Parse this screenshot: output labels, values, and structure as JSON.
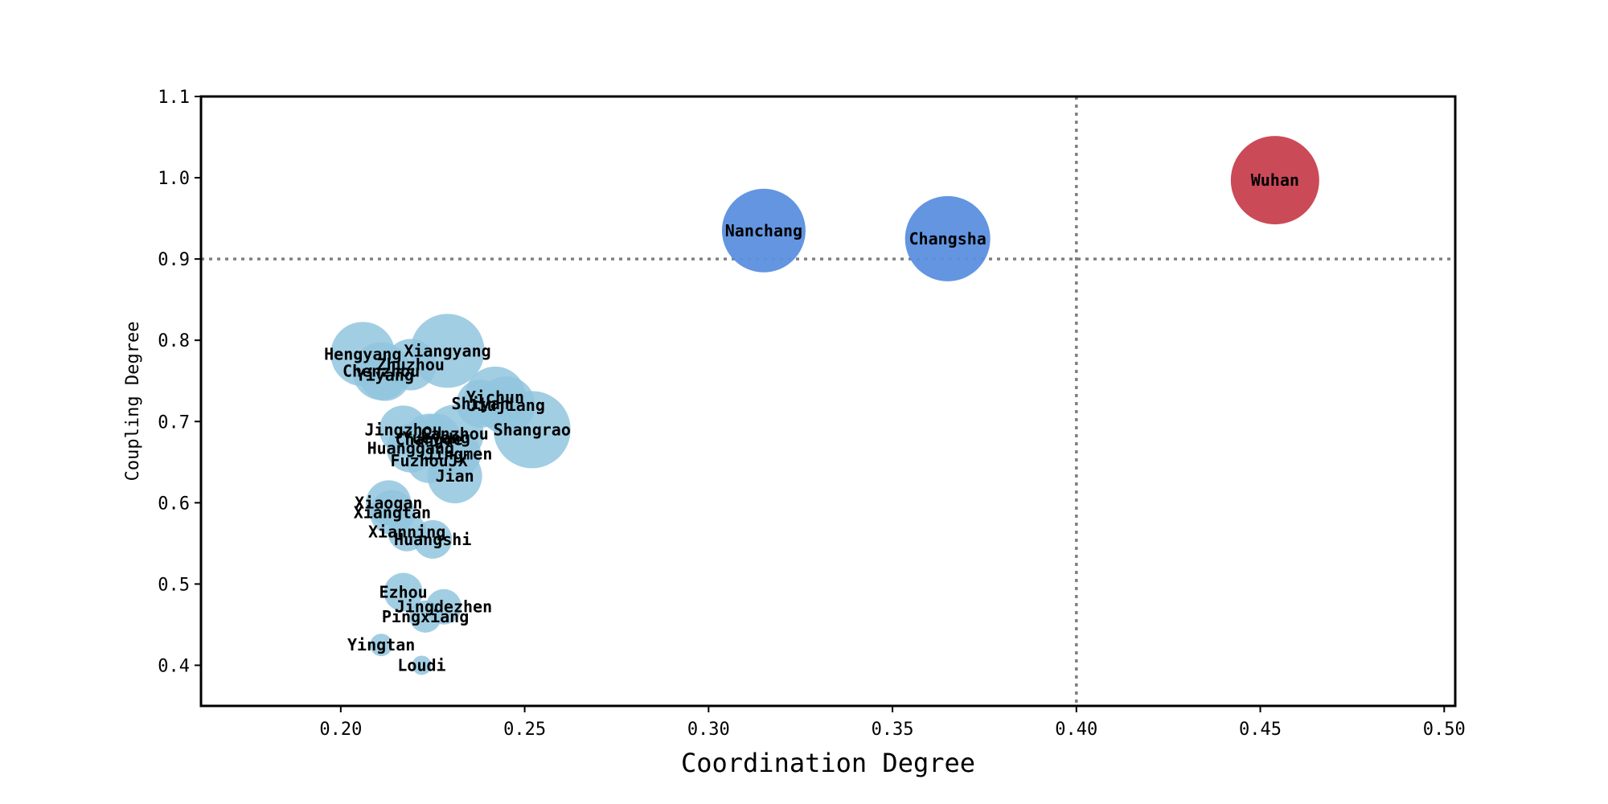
{
  "chart_data": {
    "type": "scatter",
    "title": "",
    "xlabel": "Coordination Degree",
    "ylabel": "Coupling Degree",
    "xlim": [
      0.162,
      0.503
    ],
    "ylim": [
      0.35,
      1.1
    ],
    "xticks": [
      0.2,
      0.25,
      0.3,
      0.35,
      0.4,
      0.45,
      0.5
    ],
    "yticks": [
      0.4,
      0.5,
      0.6,
      0.7,
      0.8,
      0.9,
      1.0,
      1.1
    ],
    "xtick_labels": [
      "0.20",
      "0.25",
      "0.30",
      "0.35",
      "0.40",
      "0.45",
      "0.50"
    ],
    "ytick_labels": [
      "0.4",
      "0.5",
      "0.6",
      "0.7",
      "0.8",
      "0.9",
      "1.0",
      "1.1"
    ],
    "grid": false,
    "reference_lines": {
      "x": 0.4,
      "y": 0.9,
      "style": "dotted",
      "color": "#808080"
    },
    "colors": {
      "low": "#92c5de",
      "mid": "#5b8fdf",
      "high": "#c8404f"
    },
    "points": [
      {
        "name": "Wuhan",
        "x": 0.454,
        "y": 0.997,
        "size": 55,
        "group": "high"
      },
      {
        "name": "Nanchang",
        "x": 0.315,
        "y": 0.935,
        "size": 52,
        "group": "mid"
      },
      {
        "name": "Changsha",
        "x": 0.365,
        "y": 0.925,
        "size": 53,
        "group": "mid"
      },
      {
        "name": "Xiangyang",
        "x": 0.229,
        "y": 0.787,
        "size": 46,
        "group": "low"
      },
      {
        "name": "Hengyang",
        "x": 0.206,
        "y": 0.783,
        "size": 40,
        "group": "low"
      },
      {
        "name": "Zhuzhou",
        "x": 0.219,
        "y": 0.77,
        "size": 32,
        "group": "low"
      },
      {
        "name": "Chenzhou",
        "x": 0.211,
        "y": 0.762,
        "size": 36,
        "group": "low"
      },
      {
        "name": "Yiyang",
        "x": 0.212,
        "y": 0.757,
        "size": 32,
        "group": "low"
      },
      {
        "name": "Yichun",
        "x": 0.242,
        "y": 0.73,
        "size": 38,
        "group": "low"
      },
      {
        "name": "Shiyan",
        "x": 0.238,
        "y": 0.722,
        "size": 30,
        "group": "low"
      },
      {
        "name": "Jiujiang",
        "x": 0.245,
        "y": 0.72,
        "size": 36,
        "group": "low"
      },
      {
        "name": "Shangrao",
        "x": 0.252,
        "y": 0.69,
        "size": 48,
        "group": "low"
      },
      {
        "name": "Jingzhou",
        "x": 0.217,
        "y": 0.69,
        "size": 30,
        "group": "low"
      },
      {
        "name": "Yueyang",
        "x": 0.226,
        "y": 0.68,
        "size": 30,
        "group": "low"
      },
      {
        "name": "Ganzhou",
        "x": 0.231,
        "y": 0.685,
        "size": 36,
        "group": "low"
      },
      {
        "name": "Changde",
        "x": 0.224,
        "y": 0.678,
        "size": 32,
        "group": "low"
      },
      {
        "name": "Huanggang",
        "x": 0.219,
        "y": 0.667,
        "size": 30,
        "group": "low"
      },
      {
        "name": "Jingmen",
        "x": 0.232,
        "y": 0.66,
        "size": 28,
        "group": "low"
      },
      {
        "name": "FuzhouJX",
        "x": 0.224,
        "y": 0.652,
        "size": 28,
        "group": "low"
      },
      {
        "name": "Jian",
        "x": 0.231,
        "y": 0.633,
        "size": 34,
        "group": "low"
      },
      {
        "name": "Xiaogan",
        "x": 0.213,
        "y": 0.6,
        "size": 28,
        "group": "low"
      },
      {
        "name": "Xiangtan",
        "x": 0.214,
        "y": 0.588,
        "size": 28,
        "group": "low"
      },
      {
        "name": "Xianning",
        "x": 0.218,
        "y": 0.564,
        "size": 24,
        "group": "low"
      },
      {
        "name": "Huangshi",
        "x": 0.225,
        "y": 0.555,
        "size": 24,
        "group": "low"
      },
      {
        "name": "Ezhou",
        "x": 0.217,
        "y": 0.49,
        "size": 24,
        "group": "low"
      },
      {
        "name": "Jingdezhen",
        "x": 0.228,
        "y": 0.472,
        "size": 22,
        "group": "low"
      },
      {
        "name": "Pingxiang",
        "x": 0.223,
        "y": 0.46,
        "size": 20,
        "group": "low"
      },
      {
        "name": "Yingtan",
        "x": 0.211,
        "y": 0.425,
        "size": 14,
        "group": "low"
      },
      {
        "name": "Loudi",
        "x": 0.222,
        "y": 0.4,
        "size": 12,
        "group": "low"
      }
    ]
  }
}
